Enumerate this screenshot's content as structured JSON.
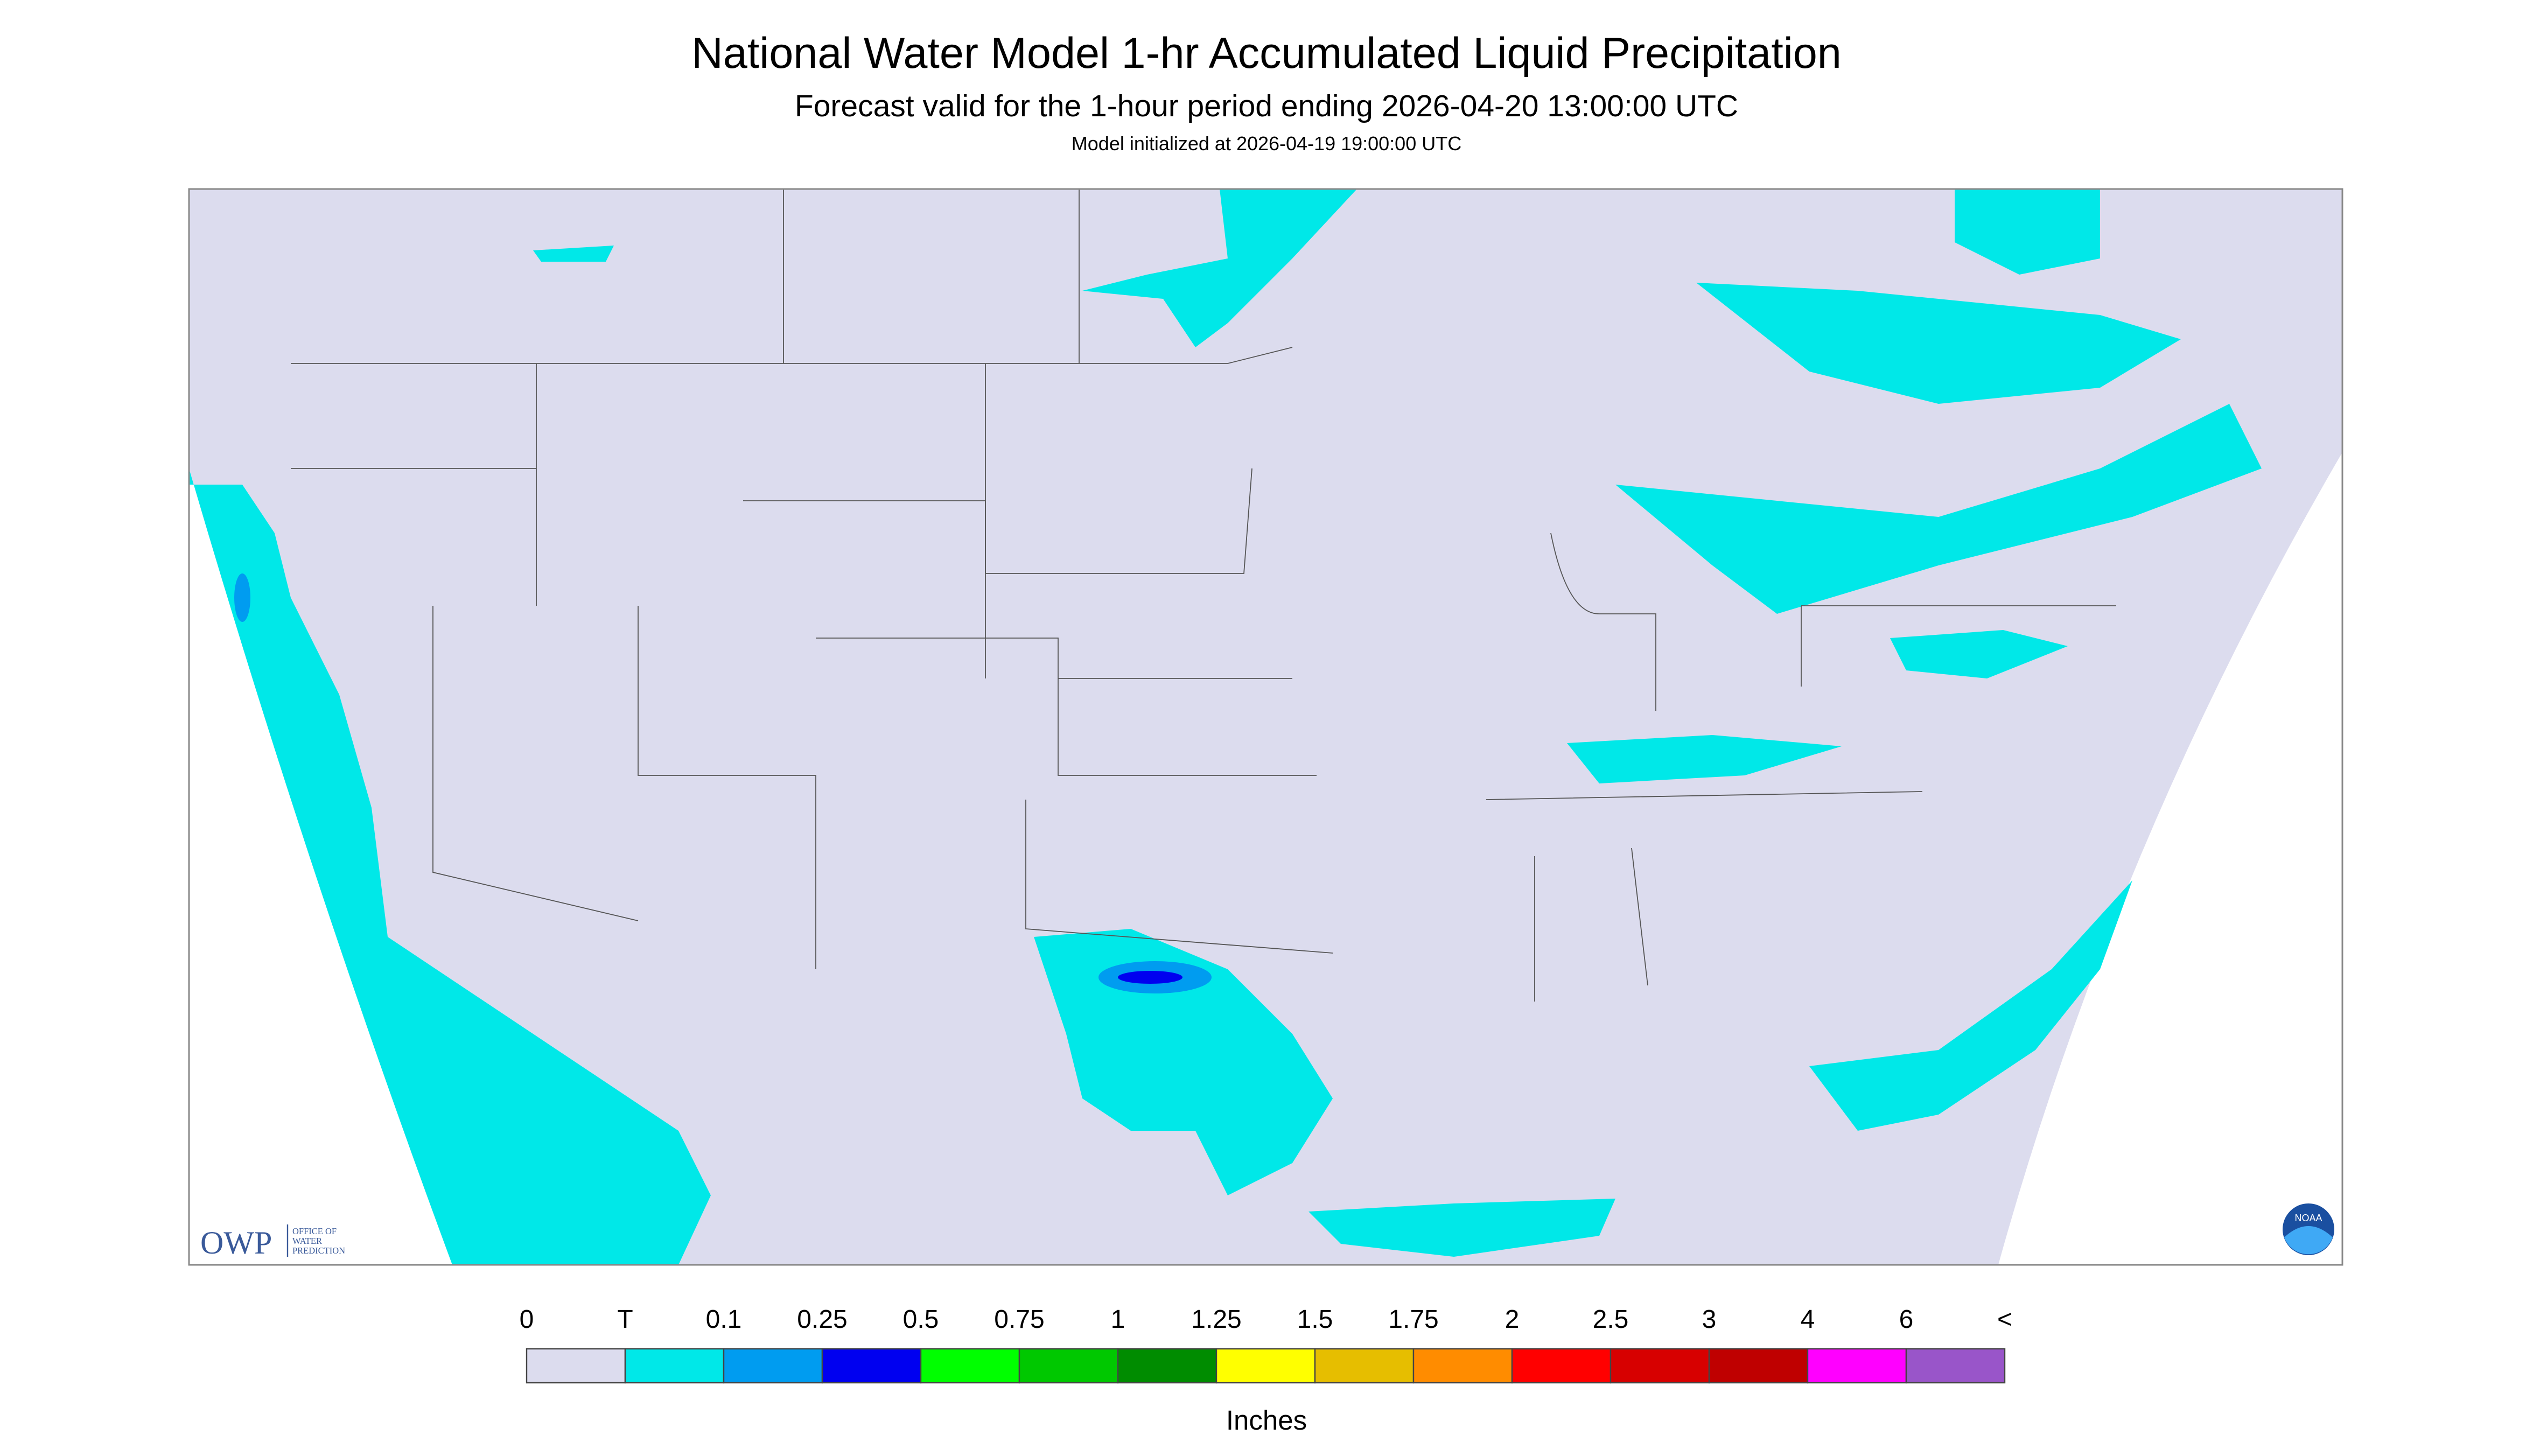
{
  "header": {
    "title": "National Water Model 1-hr Accumulated Liquid Precipitation",
    "subtitle": "Forecast valid for the 1-hour period ending 2026-04-20 13:00:00 UTC",
    "init": "Model initialized at 2026-04-19 19:00:00 UTC"
  },
  "logos": {
    "owp": "OWP",
    "owp_full": [
      "OFFICE OF",
      "WATER",
      "PREDICTION"
    ],
    "noaa": "NOAA"
  },
  "legend": {
    "labels": [
      "0",
      "T",
      "0.1",
      "0.25",
      "0.5",
      "0.75",
      "1",
      "1.25",
      "1.5",
      "1.75",
      "2",
      "2.5",
      "3",
      "4",
      "6",
      "<"
    ],
    "colors": [
      "#dcdcee",
      "#00e8e8",
      "#009cf0",
      "#0000f0",
      "#00ff00",
      "#00c800",
      "#008c00",
      "#ffff00",
      "#e6be00",
      "#ff8c00",
      "#ff0000",
      "#d70000",
      "#bf0000",
      "#ff00ff",
      "#9955c9"
    ],
    "unit": "Inches"
  }
}
